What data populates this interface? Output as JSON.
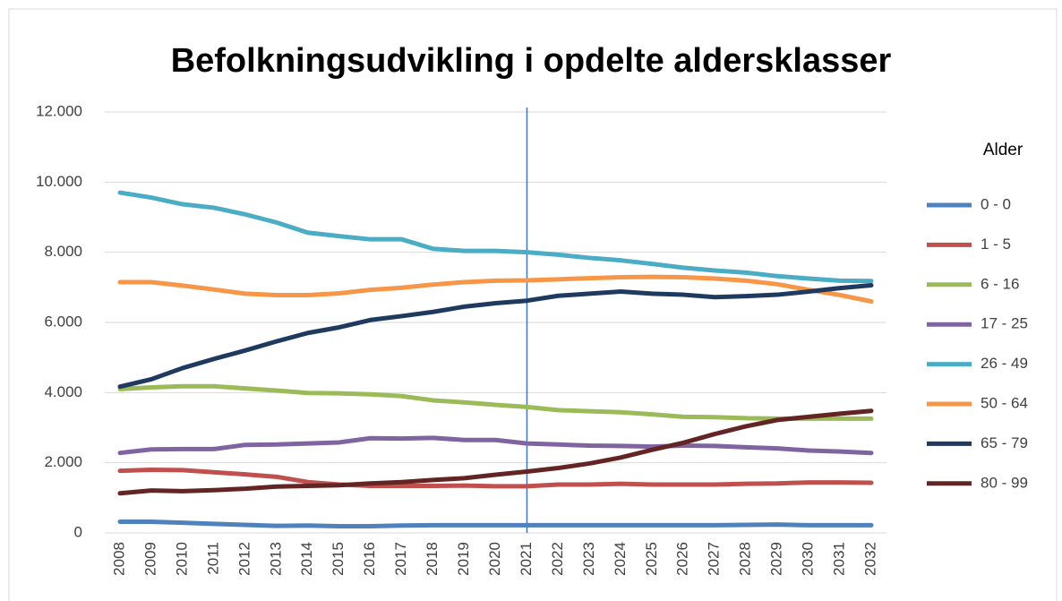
{
  "chart_data": {
    "type": "line",
    "title": "Befolkningsudvikling i opdelte aldersklasser",
    "categories": [
      "2008",
      "2009",
      "2010",
      "2011",
      "2012",
      "2013",
      "2014",
      "2015",
      "2016",
      "2017",
      "2018",
      "2019",
      "2020",
      "2021",
      "2022",
      "2023",
      "2024",
      "2025",
      "2026",
      "2027",
      "2028",
      "2029",
      "2030",
      "2031",
      "2032"
    ],
    "series": [
      {
        "name": "0 - 0",
        "color": "#4f81bd",
        "values": [
          320,
          320,
          290,
          260,
          230,
          200,
          210,
          190,
          190,
          210,
          220,
          220,
          220,
          220,
          220,
          220,
          220,
          220,
          220,
          220,
          230,
          240,
          220,
          220,
          220
        ]
      },
      {
        "name": "1 - 5",
        "color": "#c0504d",
        "values": [
          1770,
          1800,
          1790,
          1730,
          1670,
          1600,
          1450,
          1380,
          1340,
          1340,
          1340,
          1350,
          1330,
          1330,
          1380,
          1380,
          1400,
          1380,
          1380,
          1380,
          1400,
          1410,
          1440,
          1440,
          1430
        ]
      },
      {
        "name": "6 - 16",
        "color": "#9bbb59",
        "values": [
          4100,
          4150,
          4180,
          4180,
          4120,
          4060,
          3990,
          3980,
          3950,
          3900,
          3780,
          3720,
          3650,
          3590,
          3500,
          3470,
          3440,
          3380,
          3310,
          3300,
          3270,
          3260,
          3260,
          3260,
          3260
        ]
      },
      {
        "name": "17 - 25",
        "color": "#8064a2",
        "values": [
          2280,
          2380,
          2390,
          2390,
          2510,
          2520,
          2550,
          2580,
          2700,
          2690,
          2710,
          2650,
          2650,
          2550,
          2520,
          2490,
          2480,
          2460,
          2490,
          2480,
          2440,
          2410,
          2350,
          2320,
          2280
        ]
      },
      {
        "name": "26 - 49",
        "color": "#4bacc6",
        "values": [
          9700,
          9560,
          9370,
          9270,
          9080,
          8850,
          8560,
          8460,
          8370,
          8370,
          8100,
          8040,
          8040,
          8000,
          7930,
          7840,
          7770,
          7670,
          7560,
          7480,
          7420,
          7320,
          7250,
          7190,
          7180
        ]
      },
      {
        "name": "50 - 64",
        "color": "#f79646",
        "values": [
          7150,
          7150,
          7050,
          6940,
          6820,
          6780,
          6780,
          6830,
          6930,
          6990,
          7080,
          7150,
          7190,
          7200,
          7230,
          7260,
          7290,
          7300,
          7290,
          7250,
          7190,
          7090,
          6930,
          6780,
          6600
        ]
      },
      {
        "name": "65 - 79",
        "color": "#1f3a5f",
        "values": [
          4170,
          4380,
          4700,
          4960,
          5200,
          5460,
          5700,
          5860,
          6070,
          6180,
          6300,
          6450,
          6550,
          6620,
          6760,
          6820,
          6880,
          6820,
          6790,
          6720,
          6750,
          6790,
          6880,
          6980,
          7060
        ]
      },
      {
        "name": "80 - 99",
        "color": "#632523",
        "values": [
          1130,
          1210,
          1190,
          1220,
          1260,
          1320,
          1340,
          1360,
          1410,
          1450,
          1510,
          1560,
          1660,
          1750,
          1850,
          1980,
          2150,
          2370,
          2570,
          2820,
          3040,
          3220,
          3310,
          3400,
          3480
        ]
      }
    ],
    "ylim": [
      0,
      12000
    ],
    "yticks": [
      0,
      {
        "value": 2000,
        "label": "2.000"
      },
      {
        "value": 4000,
        "label": "4.000"
      },
      {
        "value": 6000,
        "label": "6.000"
      },
      {
        "value": 8000,
        "label": "8.000"
      },
      {
        "value": 10000,
        "label": "10.000"
      },
      {
        "value": 12000,
        "label": "12.000"
      }
    ],
    "grid": true,
    "legend_title": "Alder",
    "legend": "right",
    "vline": "2021"
  }
}
